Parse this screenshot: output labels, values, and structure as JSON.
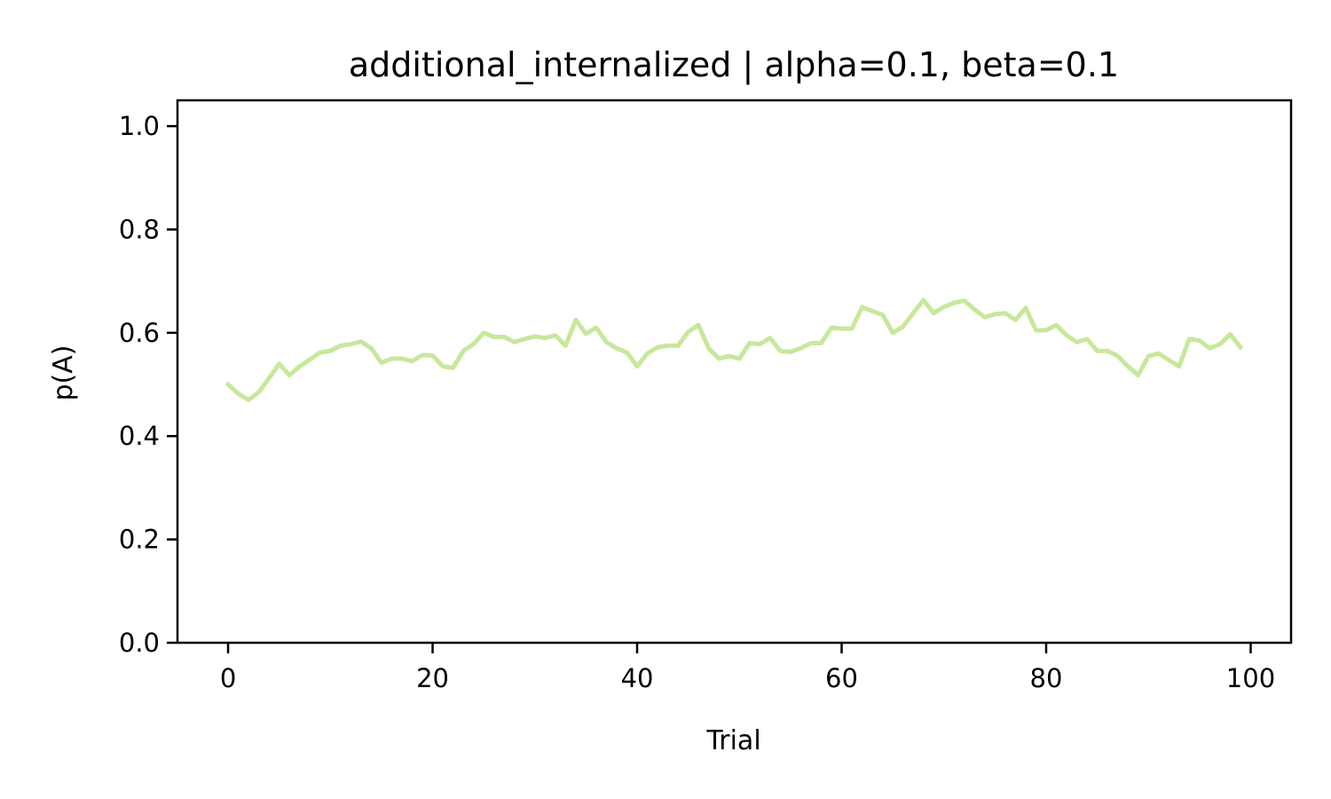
{
  "chart_data": {
    "type": "line",
    "title": "additional_internalized | alpha=0.1, beta=0.1",
    "xlabel": "Trial",
    "ylabel": "p(A)",
    "xlim": [
      -4.95,
      103.95
    ],
    "ylim": [
      0.0,
      1.05
    ],
    "xticks": [
      0,
      20,
      40,
      60,
      80,
      100
    ],
    "xtick_labels": [
      "0",
      "20",
      "40",
      "60",
      "80",
      "100"
    ],
    "yticks": [
      0.0,
      0.2,
      0.4,
      0.6,
      0.8,
      1.0
    ],
    "ytick_labels": [
      "0.0",
      "0.2",
      "0.4",
      "0.6",
      "0.8",
      "1.0"
    ],
    "grid": false,
    "series": [
      {
        "color": "#c7e89b",
        "x": [
          0,
          1,
          2,
          3,
          4,
          5,
          6,
          7,
          8,
          9,
          10,
          11,
          12,
          13,
          14,
          15,
          16,
          17,
          18,
          19,
          20,
          21,
          22,
          23,
          24,
          25,
          26,
          27,
          28,
          29,
          30,
          31,
          32,
          33,
          34,
          35,
          36,
          37,
          38,
          39,
          40,
          41,
          42,
          43,
          44,
          45,
          46,
          47,
          48,
          49,
          50,
          51,
          52,
          53,
          54,
          55,
          56,
          57,
          58,
          59,
          60,
          61,
          62,
          63,
          64,
          65,
          66,
          67,
          68,
          69,
          70,
          71,
          72,
          73,
          74,
          75,
          76,
          77,
          78,
          79,
          80,
          81,
          82,
          83,
          84,
          85,
          86,
          87,
          88,
          89,
          90,
          91,
          92,
          93,
          94,
          95,
          96,
          97,
          98,
          99
        ],
        "values": [
          0.5,
          0.482,
          0.47,
          0.485,
          0.512,
          0.54,
          0.518,
          0.535,
          0.548,
          0.562,
          0.565,
          0.575,
          0.578,
          0.583,
          0.57,
          0.542,
          0.55,
          0.55,
          0.545,
          0.557,
          0.556,
          0.535,
          0.532,
          0.565,
          0.578,
          0.6,
          0.592,
          0.592,
          0.582,
          0.588,
          0.593,
          0.59,
          0.595,
          0.575,
          0.625,
          0.598,
          0.61,
          0.582,
          0.57,
          0.562,
          0.535,
          0.56,
          0.572,
          0.575,
          0.575,
          0.602,
          0.615,
          0.57,
          0.55,
          0.555,
          0.55,
          0.58,
          0.578,
          0.59,
          0.565,
          0.563,
          0.57,
          0.58,
          0.58,
          0.61,
          0.608,
          0.608,
          0.65,
          0.642,
          0.635,
          0.6,
          0.612,
          0.638,
          0.663,
          0.638,
          0.65,
          0.658,
          0.662,
          0.645,
          0.63,
          0.636,
          0.638,
          0.625,
          0.648,
          0.605,
          0.605,
          0.615,
          0.595,
          0.582,
          0.588,
          0.565,
          0.565,
          0.555,
          0.535,
          0.518,
          0.555,
          0.56,
          0.547,
          0.535,
          0.588,
          0.585,
          0.57,
          0.578,
          0.597,
          0.572
        ]
      }
    ]
  }
}
